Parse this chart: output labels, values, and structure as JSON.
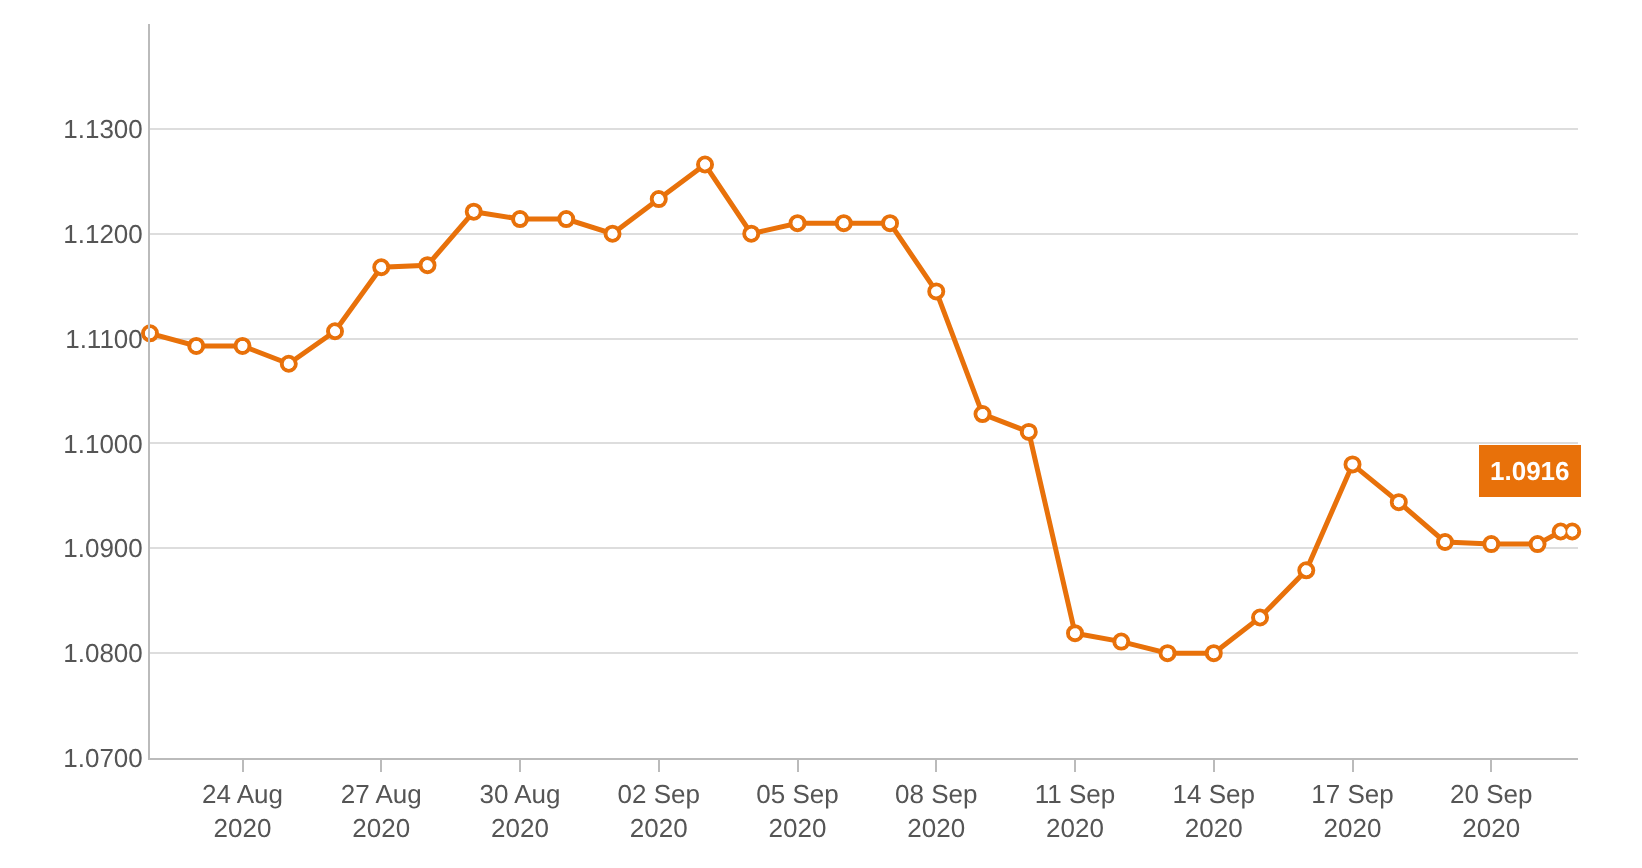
{
  "chart_data": {
    "type": "line",
    "color": "#e8710a",
    "marker": "circle",
    "line_style": "solid",
    "grid": "y",
    "legend": false,
    "x": [
      "2020-08-22",
      "2020-08-23",
      "2020-08-24",
      "2020-08-25",
      "2020-08-26",
      "2020-08-27",
      "2020-08-28",
      "2020-08-29",
      "2020-08-30",
      "2020-08-31",
      "2020-09-01",
      "2020-09-02",
      "2020-09-03",
      "2020-09-04",
      "2020-09-05",
      "2020-09-06",
      "2020-09-07",
      "2020-09-08",
      "2020-09-09",
      "2020-09-10",
      "2020-09-11",
      "2020-09-12",
      "2020-09-13",
      "2020-09-14",
      "2020-09-15",
      "2020-09-16",
      "2020-09-17",
      "2020-09-18",
      "2020-09-19",
      "2020-09-20",
      "2020-09-21",
      "2020-09-21T12:00",
      "2020-09-21T18:00"
    ],
    "values": [
      1.1105,
      1.1093,
      1.1093,
      1.1076,
      1.1107,
      1.1168,
      1.117,
      1.1221,
      1.1214,
      1.1214,
      1.12,
      1.1233,
      1.1266,
      1.12,
      1.121,
      1.121,
      1.121,
      1.1145,
      1.1028,
      1.1011,
      1.0819,
      1.0811,
      1.08,
      1.08,
      1.0834,
      1.0879,
      1.098,
      1.0944,
      1.0906,
      1.0904,
      1.0904,
      1.0916,
      1.0916
    ],
    "value_labels": [
      null,
      null,
      null,
      null,
      null,
      null,
      null,
      null,
      null,
      null,
      null,
      null,
      null,
      null,
      null,
      null,
      null,
      null,
      null,
      null,
      null,
      null,
      null,
      null,
      null,
      null,
      null,
      null,
      null,
      null,
      null,
      null,
      "1.0916"
    ],
    "xlim": [
      "2020-08-22",
      "2020-09-21T21:00"
    ],
    "xticks": [
      {
        "value": "2020-08-24",
        "label": "24 Aug 2020"
      },
      {
        "value": "2020-08-27",
        "label": "27 Aug 2020"
      },
      {
        "value": "2020-08-30",
        "label": "30 Aug 2020"
      },
      {
        "value": "2020-09-02",
        "label": "02 Sep 2020"
      },
      {
        "value": "2020-09-05",
        "label": "05 Sep 2020"
      },
      {
        "value": "2020-09-08",
        "label": "08 Sep 2020"
      },
      {
        "value": "2020-09-11",
        "label": "11 Sep 2020"
      },
      {
        "value": "2020-09-14",
        "label": "14 Sep 2020"
      },
      {
        "value": "2020-09-17",
        "label": "17 Sep 2020"
      },
      {
        "value": "2020-09-20",
        "label": "20 Sep 2020"
      }
    ],
    "ylim": [
      1.07,
      1.14
    ],
    "yticks": [
      {
        "value": 1.07,
        "label": "1.0700"
      },
      {
        "value": 1.08,
        "label": "1.0800"
      },
      {
        "value": 1.09,
        "label": "1.0900"
      },
      {
        "value": 1.1,
        "label": "1.1000"
      },
      {
        "value": 1.11,
        "label": "1.1100"
      },
      {
        "value": 1.12,
        "label": "1.1200"
      },
      {
        "value": 1.13,
        "label": "1.1300"
      }
    ]
  }
}
